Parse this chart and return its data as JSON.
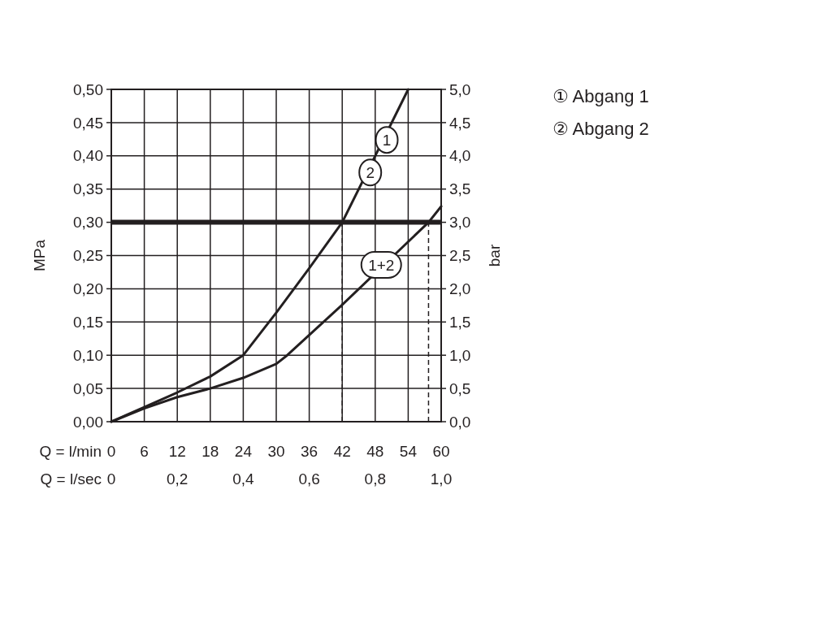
{
  "chart_data": {
    "type": "line",
    "xlabel": "Q = l/min",
    "x2label": "Q = l/sec",
    "ylabel": "MPa",
    "y2label": "bar",
    "xlim": [
      0,
      60
    ],
    "xticks": [
      0,
      6,
      12,
      18,
      24,
      30,
      36,
      42,
      48,
      54,
      60
    ],
    "x2lim": [
      0,
      1
    ],
    "x2ticks": [
      0,
      {
        "value": 0.2,
        "label": "0,2"
      },
      {
        "value": 0.4,
        "label": "0,4"
      },
      {
        "value": 0.6,
        "label": "0,6"
      },
      {
        "value": 0.8,
        "label": "0,8"
      },
      {
        "value": 1,
        "label": "1,0"
      }
    ],
    "ylim": [
      0,
      0.5
    ],
    "yticks": [
      {
        "value": 0,
        "label": "0,00"
      },
      {
        "value": 0.05,
        "label": "0,05"
      },
      {
        "value": 0.1,
        "label": "0,10"
      },
      {
        "value": 0.15,
        "label": "0,15"
      },
      {
        "value": 0.2,
        "label": "0,20"
      },
      {
        "value": 0.25,
        "label": "0,25"
      },
      {
        "value": 0.3,
        "label": "0,30"
      },
      {
        "value": 0.35,
        "label": "0,35"
      },
      {
        "value": 0.4,
        "label": "0,40"
      },
      {
        "value": 0.45,
        "label": "0,45"
      },
      {
        "value": 0.5,
        "label": "0,50"
      }
    ],
    "y2lim": [
      0,
      5
    ],
    "y2ticks": [
      {
        "value": 0,
        "label": "0,0"
      },
      {
        "value": 0.5,
        "label": "0,5"
      },
      {
        "value": 1,
        "label": "1,0"
      },
      {
        "value": 1.5,
        "label": "1,5"
      },
      {
        "value": 2,
        "label": "2,0"
      },
      {
        "value": 2.5,
        "label": "2,5"
      },
      {
        "value": 3,
        "label": "3,0"
      },
      {
        "value": 3.5,
        "label": "3,5"
      },
      {
        "value": 4,
        "label": "4,0"
      },
      {
        "value": 4.5,
        "label": "4,5"
      },
      {
        "value": 5,
        "label": "5,0"
      }
    ],
    "grid": true,
    "marker": "none",
    "line_style": "solid",
    "series": [
      {
        "color": "#231f20",
        "x": [
          0,
          6,
          12,
          18,
          24,
          30,
          36,
          42,
          48,
          54
        ],
        "values": [
          0,
          0.022,
          0.044,
          0.068,
          0.1,
          0.164,
          0.231,
          0.3,
          0.4,
          0.5
        ]
      },
      {
        "color": "#231f20",
        "x": [
          0,
          6,
          12,
          18,
          24,
          30,
          32,
          42,
          57.7,
          60
        ],
        "values": [
          0,
          0.02,
          0.037,
          0.05,
          0.066,
          0.087,
          0.1,
          0.176,
          0.3,
          0.324
        ]
      }
    ],
    "ref_lines": [
      {
        "axis": "y",
        "value": 0.3,
        "color": "#231f20",
        "line_style": "solid"
      },
      {
        "axis": "x",
        "value": 42,
        "color": "#231f20",
        "line_style": "dashed"
      },
      {
        "axis": "x",
        "value": 57.7,
        "color": "#231f20",
        "line_style": "dashed"
      }
    ],
    "annotations": [
      {
        "text": "1",
        "x": 50.1,
        "y": 0.424
      },
      {
        "text": "2",
        "x": 47.1,
        "y": 0.375
      },
      {
        "text": "1+2",
        "x": 49.1,
        "y": 0.236
      },
      "① Abgang 1",
      "② Abgang 2"
    ]
  }
}
